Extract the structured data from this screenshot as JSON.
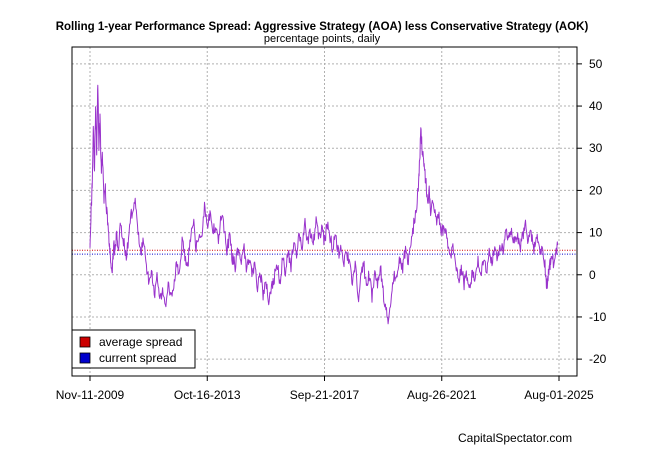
{
  "chart_data": {
    "type": "line",
    "title": "Rolling 1-year Performance Spread: Aggressive Strategy (AOA) less Conservative Strategy (AOK)",
    "subtitle": "percentage points, daily",
    "x_tick_labels": [
      "Nov-11-2009",
      "Oct-16-2013",
      "Sep-21-2017",
      "Aug-26-2021",
      "Aug-01-2025"
    ],
    "y_ticks": [
      -20,
      -10,
      0,
      10,
      20,
      30,
      40,
      50
    ],
    "ylim": [
      -24,
      54
    ],
    "grid": true,
    "legend_position": "bottom-left",
    "legend": [
      {
        "label": "average spread",
        "color": "#cc0000"
      },
      {
        "label": "current spread",
        "color": "#0000cc"
      }
    ],
    "series": [
      {
        "name": "spread",
        "color": "#9933cc",
        "points": [
          [
            0.0,
            8
          ],
          [
            0.04,
            15
          ],
          [
            0.08,
            22
          ],
          [
            0.12,
            35
          ],
          [
            0.16,
            25
          ],
          [
            0.2,
            40
          ],
          [
            0.24,
            28
          ],
          [
            0.28,
            46
          ],
          [
            0.32,
            30
          ],
          [
            0.36,
            38
          ],
          [
            0.4,
            25
          ],
          [
            0.44,
            28
          ],
          [
            0.5,
            18
          ],
          [
            0.55,
            20
          ],
          [
            0.6,
            15
          ],
          [
            0.65,
            12
          ],
          [
            0.7,
            6
          ],
          [
            0.75,
            3
          ],
          [
            0.8,
            0
          ],
          [
            0.85,
            8
          ],
          [
            0.9,
            5
          ],
          [
            0.95,
            10
          ],
          [
            1.0,
            6
          ],
          [
            1.1,
            12
          ],
          [
            1.2,
            8
          ],
          [
            1.3,
            4
          ],
          [
            1.4,
            10
          ],
          [
            1.5,
            15
          ],
          [
            1.6,
            18
          ],
          [
            1.7,
            12
          ],
          [
            1.8,
            5
          ],
          [
            1.9,
            8
          ],
          [
            2.0,
            4
          ],
          [
            2.1,
            -2
          ],
          [
            2.2,
            2
          ],
          [
            2.3,
            -5
          ],
          [
            2.4,
            -1
          ],
          [
            2.5,
            -7
          ],
          [
            2.6,
            -3
          ],
          [
            2.7,
            -8
          ],
          [
            2.8,
            -2
          ],
          [
            2.9,
            -6
          ],
          [
            3.0,
            -3
          ],
          [
            3.1,
            4
          ],
          [
            3.2,
            0
          ],
          [
            3.3,
            8
          ],
          [
            3.4,
            4
          ],
          [
            3.5,
            2
          ],
          [
            3.6,
            9
          ],
          [
            3.7,
            13
          ],
          [
            3.8,
            6
          ],
          [
            3.9,
            10
          ],
          [
            4.0,
            8
          ],
          [
            4.1,
            17
          ],
          [
            4.2,
            12
          ],
          [
            4.3,
            14
          ],
          [
            4.4,
            10
          ],
          [
            4.5,
            12
          ],
          [
            4.6,
            8
          ],
          [
            4.7,
            14
          ],
          [
            4.8,
            11
          ],
          [
            4.9,
            6
          ],
          [
            5.0,
            9
          ],
          [
            5.1,
            4
          ],
          [
            5.2,
            2
          ],
          [
            5.3,
            6
          ],
          [
            5.4,
            3
          ],
          [
            5.5,
            7
          ],
          [
            5.6,
            1
          ],
          [
            5.7,
            4
          ],
          [
            5.8,
            0
          ],
          [
            5.9,
            3
          ],
          [
            6.0,
            -3
          ],
          [
            6.1,
            1
          ],
          [
            6.2,
            -5
          ],
          [
            6.3,
            -2
          ],
          [
            6.4,
            -6
          ],
          [
            6.5,
            -3
          ],
          [
            6.6,
            -1
          ],
          [
            6.7,
            3
          ],
          [
            6.8,
            -2
          ],
          [
            6.9,
            4
          ],
          [
            7.0,
            1
          ],
          [
            7.1,
            6
          ],
          [
            7.2,
            2
          ],
          [
            7.3,
            8
          ],
          [
            7.4,
            4
          ],
          [
            7.5,
            10
          ],
          [
            7.6,
            6
          ],
          [
            7.7,
            12
          ],
          [
            7.8,
            8
          ],
          [
            7.9,
            10
          ],
          [
            8.0,
            7
          ],
          [
            8.1,
            13
          ],
          [
            8.2,
            9
          ],
          [
            8.3,
            11
          ],
          [
            8.4,
            8
          ],
          [
            8.5,
            12
          ],
          [
            8.6,
            9
          ],
          [
            8.7,
            6
          ],
          [
            8.8,
            10
          ],
          [
            8.9,
            5
          ],
          [
            9.0,
            7
          ],
          [
            9.1,
            3
          ],
          [
            9.2,
            5
          ],
          [
            9.3,
            2
          ],
          [
            9.4,
            -2
          ],
          [
            9.5,
            3
          ],
          [
            9.6,
            -6
          ],
          [
            9.7,
            -1
          ],
          [
            9.8,
            3
          ],
          [
            9.9,
            -3
          ],
          [
            10.0,
            0
          ],
          [
            10.1,
            -5
          ],
          [
            10.2,
            1
          ],
          [
            10.3,
            -3
          ],
          [
            10.4,
            2
          ],
          [
            10.5,
            -4
          ],
          [
            10.6,
            -8
          ],
          [
            10.7,
            -12
          ],
          [
            10.8,
            -4
          ],
          [
            10.9,
            0
          ],
          [
            11.0,
            -2
          ],
          [
            11.1,
            4
          ],
          [
            11.2,
            2
          ],
          [
            11.3,
            6
          ],
          [
            11.4,
            3
          ],
          [
            11.5,
            8
          ],
          [
            11.6,
            12
          ],
          [
            11.7,
            16
          ],
          [
            11.75,
            20
          ],
          [
            11.8,
            26
          ],
          [
            11.85,
            34
          ],
          [
            11.9,
            30
          ],
          [
            11.95,
            27
          ],
          [
            12.0,
            24
          ],
          [
            12.05,
            21
          ],
          [
            12.1,
            16
          ],
          [
            12.15,
            20
          ],
          [
            12.2,
            15
          ],
          [
            12.3,
            17
          ],
          [
            12.4,
            13
          ],
          [
            12.5,
            14
          ],
          [
            12.6,
            10
          ],
          [
            12.7,
            12
          ],
          [
            12.8,
            8
          ],
          [
            12.9,
            4
          ],
          [
            13.0,
            6
          ],
          [
            13.1,
            2
          ],
          [
            13.2,
            -1
          ],
          [
            13.3,
            1
          ],
          [
            13.4,
            -2
          ],
          [
            13.5,
            0
          ],
          [
            13.6,
            -3
          ],
          [
            13.7,
            1
          ],
          [
            13.8,
            -2
          ],
          [
            13.9,
            3
          ],
          [
            14.0,
            0
          ],
          [
            14.1,
            4
          ],
          [
            14.2,
            1
          ],
          [
            14.3,
            5
          ],
          [
            14.4,
            2
          ],
          [
            14.5,
            8
          ],
          [
            14.6,
            4
          ],
          [
            14.7,
            7
          ],
          [
            14.8,
            5
          ],
          [
            14.9,
            10
          ],
          [
            15.0,
            8
          ],
          [
            15.1,
            11
          ],
          [
            15.2,
            7
          ],
          [
            15.3,
            10
          ],
          [
            15.4,
            6
          ],
          [
            15.5,
            9
          ],
          [
            15.6,
            12
          ],
          [
            15.7,
            8
          ],
          [
            15.8,
            10
          ],
          [
            15.9,
            6
          ],
          [
            16.0,
            9
          ],
          [
            16.1,
            5
          ],
          [
            16.2,
            7
          ],
          [
            16.3,
            2
          ],
          [
            16.35,
            -3
          ],
          [
            16.4,
            -1
          ],
          [
            16.45,
            1
          ],
          [
            16.5,
            4
          ],
          [
            16.6,
            3
          ],
          [
            16.7,
            5
          ],
          [
            16.75,
            7
          ]
        ]
      }
    ],
    "reference_lines": [
      {
        "name": "average spread",
        "value": 5.8,
        "color": "#cc0000",
        "style": "dotted"
      },
      {
        "name": "current spread",
        "value": 4.9,
        "color": "#0000cc",
        "style": "dotted"
      }
    ]
  },
  "footer": {
    "credit": "CapitalSpectator.com"
  }
}
